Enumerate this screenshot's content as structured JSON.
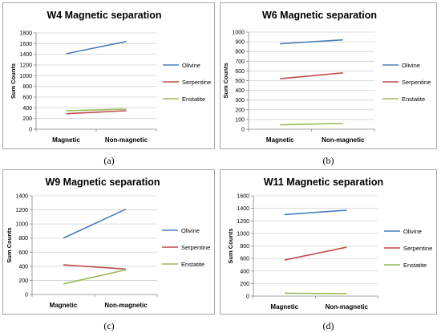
{
  "chart_data": [
    {
      "type": "line",
      "title": "W4 Magnetic separation",
      "xlabel": "",
      "ylabel": "Sum Counts",
      "categories": [
        "Magnetic",
        "Non-magnetic"
      ],
      "ylim": [
        0,
        1800
      ],
      "yticks": [
        0,
        200,
        400,
        600,
        800,
        1000,
        1200,
        1400,
        1600,
        1800
      ],
      "grid": true,
      "legend": "right",
      "series": [
        {
          "name": "Olivine",
          "values": [
            1410,
            1640
          ],
          "color": "#4a7ebb"
        },
        {
          "name": "Serpentine",
          "values": [
            290,
            345
          ],
          "color": "#be4b48"
        },
        {
          "name": "Enstatite",
          "values": [
            345,
            375
          ],
          "color": "#98b954"
        }
      ],
      "caption": "(a)"
    },
    {
      "type": "line",
      "title": "W6 Magnetic separation",
      "xlabel": "",
      "ylabel": "Sum Counts",
      "categories": [
        "Magnetic",
        "Non-magnetic"
      ],
      "ylim": [
        0,
        1000
      ],
      "yticks": [
        0,
        100,
        200,
        300,
        400,
        500,
        600,
        700,
        800,
        900,
        1000
      ],
      "grid": true,
      "legend": "right",
      "series": [
        {
          "name": "Olivine",
          "values": [
            880,
            920
          ],
          "color": "#4a7ebb"
        },
        {
          "name": "Serpentine",
          "values": [
            520,
            580
          ],
          "color": "#be4b48"
        },
        {
          "name": "Enstatite",
          "values": [
            45,
            60
          ],
          "color": "#98b954"
        }
      ],
      "caption": "(b)"
    },
    {
      "type": "line",
      "title": "W9 Magnetic separation",
      "xlabel": "",
      "ylabel": "Sum Counts",
      "categories": [
        "Magnetic",
        "Non-magnetic"
      ],
      "ylim": [
        0,
        1400
      ],
      "yticks": [
        0,
        200,
        400,
        600,
        800,
        1000,
        1200,
        1400
      ],
      "grid": true,
      "legend": "right",
      "series": [
        {
          "name": "Olivine",
          "values": [
            800,
            1210
          ],
          "color": "#4a7ebb"
        },
        {
          "name": "Serpentine",
          "values": [
            420,
            360
          ],
          "color": "#be4b48"
        },
        {
          "name": "Enstatite",
          "values": [
            150,
            350
          ],
          "color": "#98b954"
        }
      ],
      "caption": "(c)"
    },
    {
      "type": "line",
      "title": "W11 Magnetic separation",
      "xlabel": "",
      "ylabel": "Sum Counts",
      "categories": [
        "Magnetic",
        "Non-magnetic"
      ],
      "ylim": [
        0,
        1600
      ],
      "yticks": [
        0,
        200,
        400,
        600,
        800,
        1000,
        1200,
        1400,
        1600
      ],
      "grid": true,
      "legend": "right",
      "series": [
        {
          "name": "Olivine",
          "values": [
            1300,
            1370
          ],
          "color": "#4a7ebb"
        },
        {
          "name": "Serpentine",
          "values": [
            575,
            780
          ],
          "color": "#be4b48"
        },
        {
          "name": "Enstatite",
          "values": [
            45,
            40
          ],
          "color": "#98b954"
        }
      ],
      "caption": "(d)"
    }
  ]
}
